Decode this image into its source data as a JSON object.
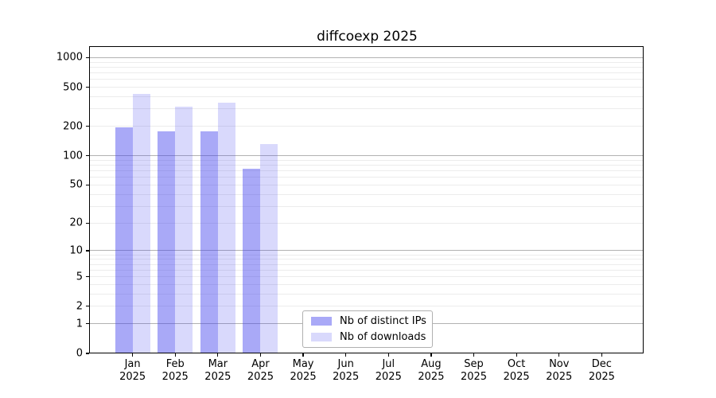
{
  "chart_data": {
    "type": "bar",
    "title": "diffcoexp 2025",
    "categories": [
      "Jan",
      "Feb",
      "Mar",
      "Apr",
      "May",
      "Jun",
      "Jul",
      "Aug",
      "Sep",
      "Oct",
      "Nov",
      "Dec"
    ],
    "x_year": "2025",
    "series": [
      {
        "name": "Nb of distinct IPs",
        "color": "#4040ee",
        "alpha": 0.45,
        "values": [
          197,
          178,
          178,
          73,
          0,
          0,
          0,
          0,
          0,
          0,
          0,
          0
        ]
      },
      {
        "name": "Nb of downloads",
        "color": "#4040ee",
        "alpha": 0.2,
        "values": [
          425,
          315,
          345,
          132,
          0,
          0,
          0,
          0,
          0,
          0,
          0,
          0
        ]
      }
    ],
    "yscale": "log10(value+1)",
    "y_ticks": [
      1000,
      500,
      200,
      100,
      50,
      20,
      10,
      5,
      2,
      1,
      0
    ],
    "ylim": [
      0,
      1270
    ],
    "grid": {
      "major_values": [
        1,
        10,
        100,
        1000
      ],
      "minor_values": [
        2,
        3,
        4,
        5,
        6,
        7,
        8,
        9,
        20,
        30,
        40,
        50,
        60,
        70,
        80,
        90,
        200,
        300,
        400,
        500,
        600,
        700,
        800,
        900
      ],
      "major_color": "#b2b2b2",
      "minor_color": "#ececec"
    },
    "legend_position": "lower center",
    "axis_color": "#000000",
    "background_color": "#ffffff"
  }
}
